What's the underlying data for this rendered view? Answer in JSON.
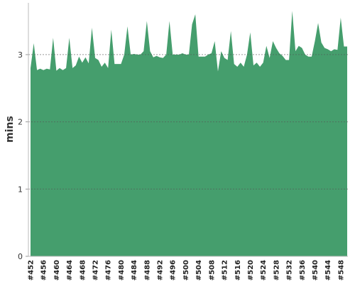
{
  "chart_data": {
    "type": "area",
    "y_label": "mins",
    "color": "#459e6d",
    "grid": true,
    "ylim": [
      0,
      3.77
    ],
    "yticks": [
      0,
      1,
      2,
      3
    ],
    "categories": [
      "#452",
      null,
      null,
      null,
      "#456",
      null,
      null,
      null,
      "#460",
      null,
      null,
      null,
      "#464",
      null,
      null,
      null,
      "#468",
      null,
      null,
      null,
      "#472",
      null,
      null,
      null,
      "#476",
      null,
      null,
      null,
      "#480",
      null,
      null,
      null,
      "#484",
      null,
      null,
      null,
      "#488",
      null,
      null,
      null,
      "#492",
      null,
      null,
      null,
      "#496",
      null,
      null,
      null,
      "#500",
      null,
      null,
      null,
      "#504",
      null,
      null,
      null,
      "#508",
      null,
      null,
      null,
      "#512",
      null,
      null,
      null,
      "#516",
      null,
      null,
      null,
      "#520",
      null,
      null,
      null,
      "#524",
      null,
      null,
      null,
      "#528",
      null,
      null,
      null,
      "#532",
      null,
      null,
      null,
      "#536",
      null,
      null,
      null,
      "#540",
      null,
      null,
      null,
      "#544",
      null,
      null,
      null,
      "#548",
      null,
      null
    ],
    "values": [
      2.8,
      3.17,
      2.77,
      2.79,
      2.77,
      2.79,
      2.78,
      3.25,
      2.76,
      2.8,
      2.77,
      2.8,
      3.25,
      2.8,
      2.84,
      2.97,
      2.88,
      2.96,
      2.87,
      3.4,
      2.95,
      2.92,
      2.82,
      2.88,
      2.8,
      3.37,
      2.86,
      2.86,
      2.86,
      3.0,
      3.42,
      3.0,
      3.01,
      3.0,
      3.0,
      3.05,
      3.5,
      3.05,
      2.96,
      2.98,
      2.96,
      2.95,
      3.0,
      3.5,
      3.0,
      3.0,
      3.0,
      3.02,
      3.0,
      3.0,
      3.45,
      3.6,
      2.97,
      2.97,
      2.97,
      3.0,
      3.02,
      3.2,
      2.75,
      3.05,
      2.95,
      2.92,
      3.35,
      2.86,
      2.82,
      2.88,
      2.82,
      3.0,
      3.33,
      2.84,
      2.88,
      2.82,
      2.88,
      3.13,
      2.95,
      3.2,
      3.1,
      3.02,
      2.98,
      2.92,
      2.92,
      3.65,
      3.05,
      3.13,
      3.1,
      3.0,
      2.97,
      2.97,
      3.2,
      3.47,
      3.18,
      3.1,
      3.08,
      3.05,
      3.08,
      3.07,
      3.55,
      3.12,
      3.12
    ]
  }
}
